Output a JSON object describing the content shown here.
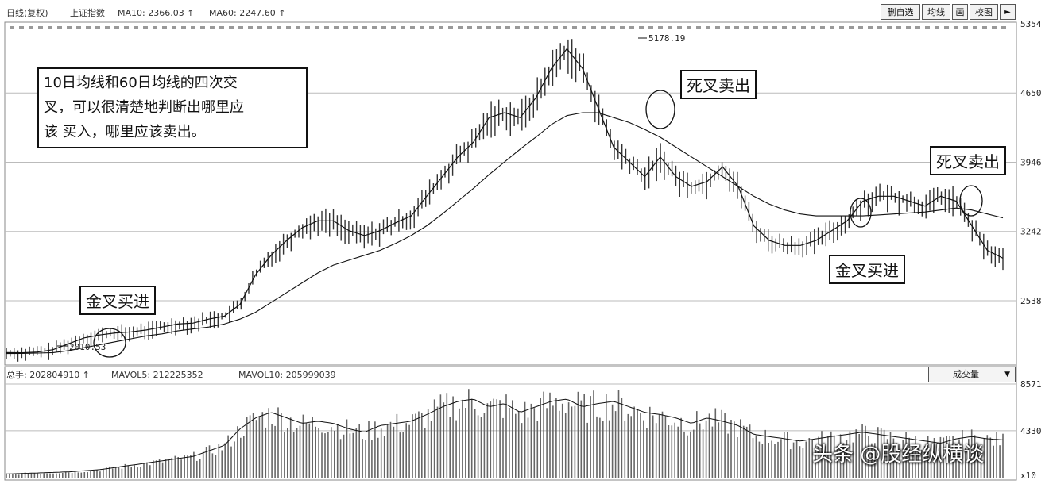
{
  "header": {
    "period": "日线(复权)",
    "index_name": "上证指数",
    "ma10_text": "MA10: 2366.03 ↑",
    "ma60_text": "MA60: 2247.60 ↑"
  },
  "toolbar": {
    "buttons": [
      "删自选",
      "均线",
      "画",
      "校图"
    ],
    "nav_icon": "arrow-right-icon"
  },
  "volume_header": {
    "volume_text": "总手: 202804910 ↑",
    "mavol5_text": "MAVOL5: 212225352",
    "mavol10_text": "MAVOL10: 205999039",
    "indicator_select": "成交量",
    "multiplier": "x10"
  },
  "annotations": {
    "note": [
      "10日均线和60日均线的四次交",
      "叉，可以很清楚地判断出哪里应",
      "该 买入，哪里应该卖出。"
    ],
    "golden_cross_1": "金叉买进",
    "death_cross_1": "死叉卖出",
    "golden_cross_2": "金叉买进",
    "death_cross_2": "死叉卖出",
    "peak_label": "5178.19",
    "low_label": "2010.53"
  },
  "watermark": "头条 @股经纵横谈",
  "colors": {
    "price_bar": "#333333",
    "ma_line": "#111111",
    "grid": "#bbbbbb",
    "volume_bar": "#666666"
  },
  "chart_data": [
    {
      "type": "line",
      "title": "上证指数 日线(复权)",
      "ylim": [
        1900,
        5354
      ],
      "y_ticks": [
        5354,
        4650,
        3946,
        3242,
        2538
      ],
      "series": [
        {
          "name": "MA10",
          "values": [
            2010,
            2008,
            2015,
            2040,
            2100,
            2160,
            2190,
            2210,
            2220,
            2240,
            2270,
            2300,
            2310,
            2350,
            2380,
            2500,
            2800,
            3000,
            3150,
            3280,
            3350,
            3350,
            3250,
            3200,
            3250,
            3330,
            3400,
            3600,
            3800,
            4000,
            4150,
            4400,
            4450,
            4400,
            4600,
            4900,
            5100,
            4900,
            4500,
            4100,
            3950,
            3800,
            4000,
            3800,
            3700,
            3750,
            3900,
            3700,
            3300,
            3150,
            3100,
            3100,
            3150,
            3250,
            3350,
            3550,
            3600,
            3600,
            3550,
            3500,
            3600,
            3550,
            3300,
            3050,
            2970
          ]
        },
        {
          "name": "MA60",
          "values": [
            2000,
            2002,
            2005,
            2010,
            2030,
            2060,
            2090,
            2120,
            2150,
            2180,
            2200,
            2230,
            2250,
            2270,
            2300,
            2350,
            2420,
            2520,
            2620,
            2720,
            2820,
            2900,
            2950,
            3000,
            3050,
            3120,
            3200,
            3300,
            3420,
            3550,
            3680,
            3820,
            3950,
            4080,
            4200,
            4330,
            4420,
            4450,
            4450,
            4400,
            4350,
            4280,
            4200,
            4100,
            4000,
            3900,
            3800,
            3700,
            3600,
            3520,
            3460,
            3420,
            3400,
            3400,
            3400,
            3400,
            3410,
            3420,
            3430,
            3440,
            3460,
            3480,
            3460,
            3420,
            3380
          ]
        }
      ],
      "annotations": [
        "5178.19",
        "2010.53",
        "金叉买进",
        "死叉卖出",
        "金叉买进",
        "死叉卖出"
      ]
    },
    {
      "type": "bar",
      "title": "成交量",
      "ylim": [
        0,
        8571
      ],
      "y_ticks": [
        8571,
        4330
      ],
      "series": [
        {
          "name": "成交量",
          "values": [
            400,
            450,
            500,
            550,
            600,
            700,
            800,
            1000,
            1200,
            1400,
            1600,
            1800,
            2000,
            2500,
            3000,
            4500,
            5500,
            6000,
            5500,
            5000,
            5200,
            5000,
            4500,
            4200,
            4800,
            5000,
            5200,
            5800,
            6500,
            7000,
            7200,
            6500,
            6800,
            6000,
            6500,
            7000,
            7200,
            6500,
            6800,
            7000,
            6500,
            6000,
            5800,
            5500,
            5000,
            5500,
            5200,
            4800,
            4000,
            3800,
            3600,
            3400,
            3600,
            3800,
            4000,
            4200,
            4000,
            3800,
            3600,
            3400,
            3200,
            3600,
            3800,
            3600,
            3500
          ]
        }
      ]
    }
  ]
}
